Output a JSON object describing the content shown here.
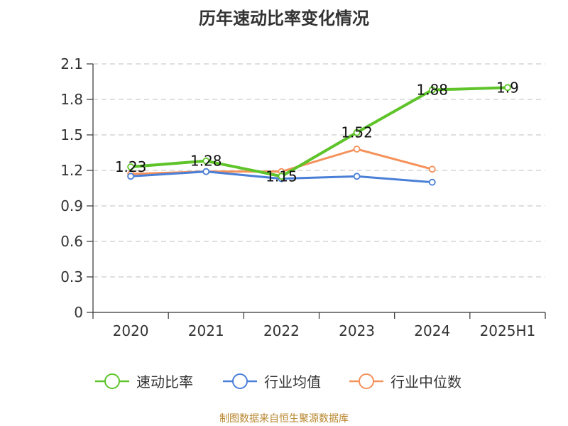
{
  "source_text": "制图数据来自恒生聚源数据库",
  "chart_data": {
    "type": "line",
    "title": "历年速动比率变化情况",
    "xlabel": "",
    "ylabel": "",
    "categories": [
      "2020",
      "2021",
      "2022",
      "2023",
      "2024",
      "2025H1"
    ],
    "ylim": [
      0,
      2.1
    ],
    "yticks": [
      "0",
      "0.3",
      "0.6",
      "0.9",
      "1.2",
      "1.5",
      "1.8",
      "2.1"
    ],
    "grid": true,
    "legend_position": "bottom",
    "series": [
      {
        "name": "速动比率",
        "color": "#5ec42a",
        "line_width": 4,
        "values": [
          1.23,
          1.28,
          1.15,
          1.52,
          1.88,
          1.9
        ],
        "labels": [
          "1.23",
          "1.28",
          "1.15",
          "1.52",
          "1.88",
          "1.9"
        ]
      },
      {
        "name": "行业均值",
        "color": "#4a7fd8",
        "line_width": 3,
        "values": [
          1.15,
          1.19,
          1.13,
          1.15,
          1.1,
          null
        ]
      },
      {
        "name": "行业中位数",
        "color": "#f5915a",
        "line_width": 3,
        "values": [
          1.17,
          1.19,
          1.19,
          1.38,
          1.21,
          null
        ]
      }
    ]
  }
}
